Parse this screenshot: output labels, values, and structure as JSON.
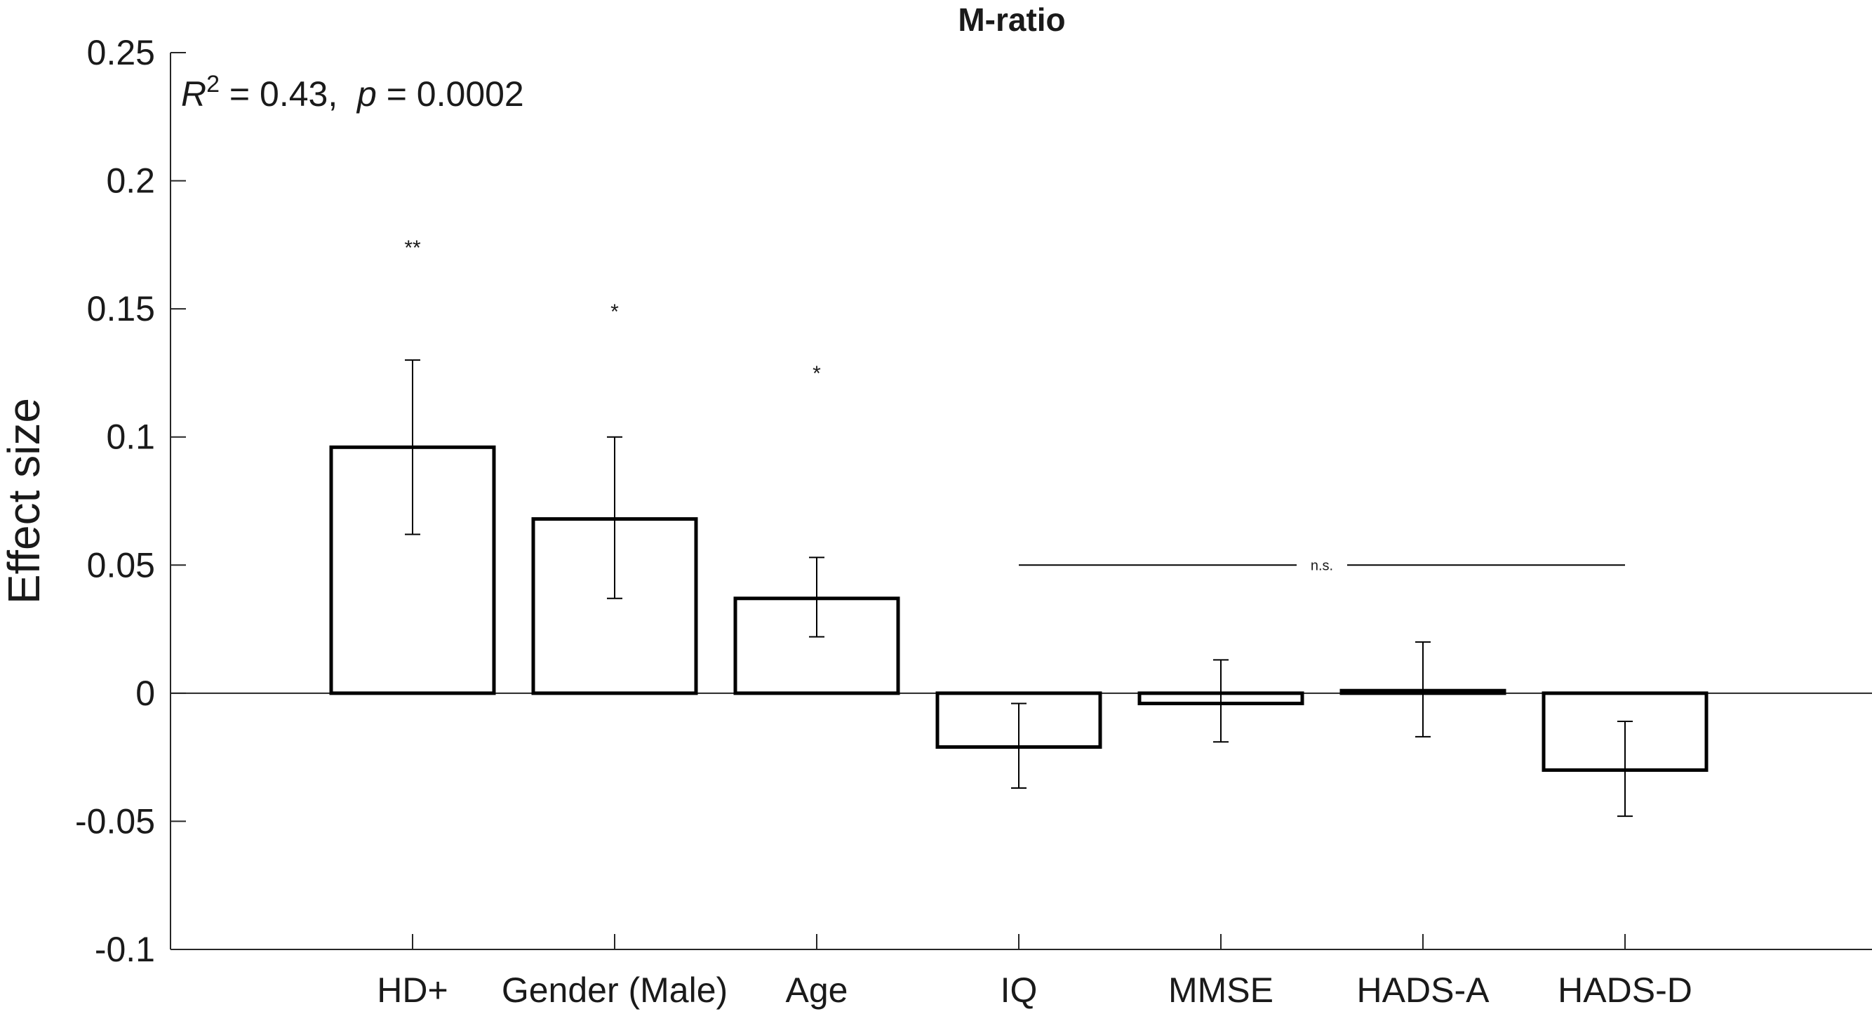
{
  "chart_data": {
    "type": "bar",
    "title": "M-ratio",
    "xlabel": "",
    "ylabel": "Effect size",
    "ylim": [
      -0.1,
      0.25
    ],
    "yticks": [
      -0.1,
      -0.05,
      0,
      0.05,
      0.1,
      0.15,
      0.2,
      0.25
    ],
    "ytick_labels": [
      "-0.1",
      "-0.05",
      "0",
      "0.05",
      "0.1",
      "0.15",
      "0.2",
      "0.25"
    ],
    "categories": [
      "HD+",
      "Gender (Male)",
      "Age",
      "IQ",
      "MMSE",
      "HADS-A",
      "HADS-D"
    ],
    "values": [
      0.096,
      0.068,
      0.037,
      -0.021,
      -0.004,
      0.001,
      -0.03
    ],
    "error_low": [
      0.062,
      0.037,
      0.022,
      -0.037,
      -0.019,
      -0.017,
      -0.048
    ],
    "error_high": [
      0.13,
      0.1,
      0.053,
      -0.004,
      0.013,
      0.02,
      -0.011
    ],
    "significance": [
      "**",
      "*",
      "*",
      "",
      "",
      "",
      ""
    ],
    "significance_y": [
      0.175,
      0.15,
      0.126,
      null,
      null,
      null,
      null
    ],
    "ns_bracket": {
      "label": "n.s.",
      "from": "IQ",
      "to": "HADS-D",
      "y": 0.05
    },
    "annotation": {
      "r2_label": "R",
      "r2_exp": "2",
      "r2_value": " = 0.43,  ",
      "p_label": "p",
      "p_value": " = 0.0002"
    },
    "grid": false,
    "legend": "none",
    "colors": {
      "bar_fill": "#ffffff",
      "bar_edge": "#000000",
      "axis": "#262626"
    }
  }
}
